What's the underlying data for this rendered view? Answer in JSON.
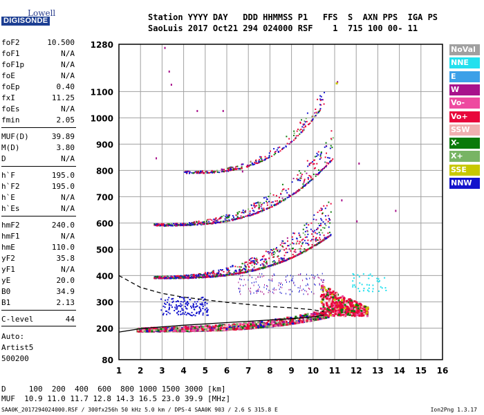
{
  "logo": {
    "lowell": "Lowell",
    "digisonde": "DIGISONDE"
  },
  "header": {
    "line1": "Station YYYY DAY   DDD HHMMSS P1   FFS  S  AXN PPS  IGA PS",
    "line2": "SaoLuis 2017 Oct21 294 024000 RSF    1  715 100 00- 11"
  },
  "params": [
    {
      "label": "foF2",
      "value": "10.500"
    },
    {
      "label": "foF1",
      "value": "N/A"
    },
    {
      "label": "foF1p",
      "value": "N/A"
    },
    {
      "label": "foE",
      "value": "N/A"
    },
    {
      "label": "foEp",
      "value": "0.40"
    },
    {
      "label": "fxI",
      "value": "11.25"
    },
    {
      "label": "foEs",
      "value": "N/A"
    },
    {
      "label": "fmin",
      "value": "2.05"
    },
    {
      "label": "MUF(D)",
      "value": "39.89"
    },
    {
      "label": "M(D)",
      "value": "3.80"
    },
    {
      "label": "D",
      "value": "N/A"
    },
    {
      "label": "h`F",
      "value": "195.0"
    },
    {
      "label": "h`F2",
      "value": "195.0"
    },
    {
      "label": "h`E",
      "value": "N/A"
    },
    {
      "label": "h`Es",
      "value": "N/A"
    },
    {
      "label": "hmF2",
      "value": "240.0"
    },
    {
      "label": "hmF1",
      "value": "N/A"
    },
    {
      "label": "hmE",
      "value": "110.0"
    },
    {
      "label": "yF2",
      "value": "35.8"
    },
    {
      "label": "yF1",
      "value": "N/A"
    },
    {
      "label": "yE",
      "value": "20.0"
    },
    {
      "label": "B0",
      "value": "34.9"
    },
    {
      "label": "B1",
      "value": "2.13"
    },
    {
      "label": "C-level",
      "value": "44"
    }
  ],
  "autoscaling": {
    "line1": "Auto:",
    "line2": "Artist5",
    "line3": "500200"
  },
  "muf_table": {
    "d_line": "D     100  200  400  600  800 1000 1500 3000 [km]",
    "muf_line": "MUF  10.9 11.0 11.7 12.8 14.3 16.5 23.0 39.9 [MHz]"
  },
  "footer": {
    "left": "SAA0K_2017294024000.RSF / 300fx256h 50 kHz 5.0 km / DPS-4 SAA0K 903 / 2.6 S 315.8 E",
    "right": "Ion2Png 1.3.17"
  },
  "legend": [
    {
      "label": "NoVal",
      "color": "#a0a0a0"
    },
    {
      "label": "NNE",
      "color": "#22e0ee"
    },
    {
      "label": "E",
      "color": "#3ca0e8"
    },
    {
      "label": "W",
      "color": "#a8128c"
    },
    {
      "label": "Vo-",
      "color": "#ee4aa0"
    },
    {
      "label": "Vo+",
      "color": "#e8083c"
    },
    {
      "label": "SSW",
      "color": "#f0b0b0"
    },
    {
      "label": "X-",
      "color": "#0a7a0a"
    },
    {
      "label": "X+",
      "color": "#78b464"
    },
    {
      "label": "SSE",
      "color": "#c8c800"
    },
    {
      "label": "NNW",
      "color": "#1414cc"
    }
  ],
  "chart_data": {
    "type": "scatter",
    "xlabel": "",
    "ylabel": "",
    "xlim": [
      1,
      16
    ],
    "ylim": [
      80,
      1280
    ],
    "x_ticks": [
      1,
      2,
      3,
      4,
      5,
      6,
      7,
      8,
      9,
      10,
      11,
      12,
      13,
      14,
      15,
      16
    ],
    "y_ticks": [
      80,
      200,
      300,
      400,
      500,
      600,
      700,
      800,
      900,
      1000,
      1100,
      1280
    ],
    "grid": true,
    "traces": [
      {
        "name": "O-trace 1st hop",
        "h0": 195,
        "f_start": 1.8,
        "f_end": 10.7,
        "h_end": 250
      },
      {
        "name": "2nd hop",
        "h0": 395,
        "f_start": 2.6,
        "f_end": 10.8,
        "h_end": 560
      },
      {
        "name": "3rd hop",
        "h0": 595,
        "f_start": 2.6,
        "f_end": 10.9,
        "h_end": 850
      },
      {
        "name": "4th hop",
        "h0": 795,
        "f_start": 4.0,
        "f_end": 10.5,
        "h_end": 1060
      }
    ],
    "profile_solid": [
      [
        1,
        185
      ],
      [
        2,
        198
      ],
      [
        3,
        205
      ],
      [
        4,
        211
      ],
      [
        5,
        216
      ],
      [
        6,
        221
      ],
      [
        7,
        226
      ],
      [
        8,
        231
      ],
      [
        9,
        236
      ],
      [
        10,
        242
      ],
      [
        10.5,
        250
      ]
    ],
    "profile_dashed": [
      [
        1,
        400
      ],
      [
        2,
        355
      ],
      [
        3,
        332
      ],
      [
        4,
        318
      ],
      [
        5,
        308
      ],
      [
        6,
        298
      ],
      [
        7,
        290
      ],
      [
        8,
        282
      ],
      [
        9,
        277
      ],
      [
        10,
        270
      ],
      [
        10.5,
        262
      ]
    ]
  }
}
